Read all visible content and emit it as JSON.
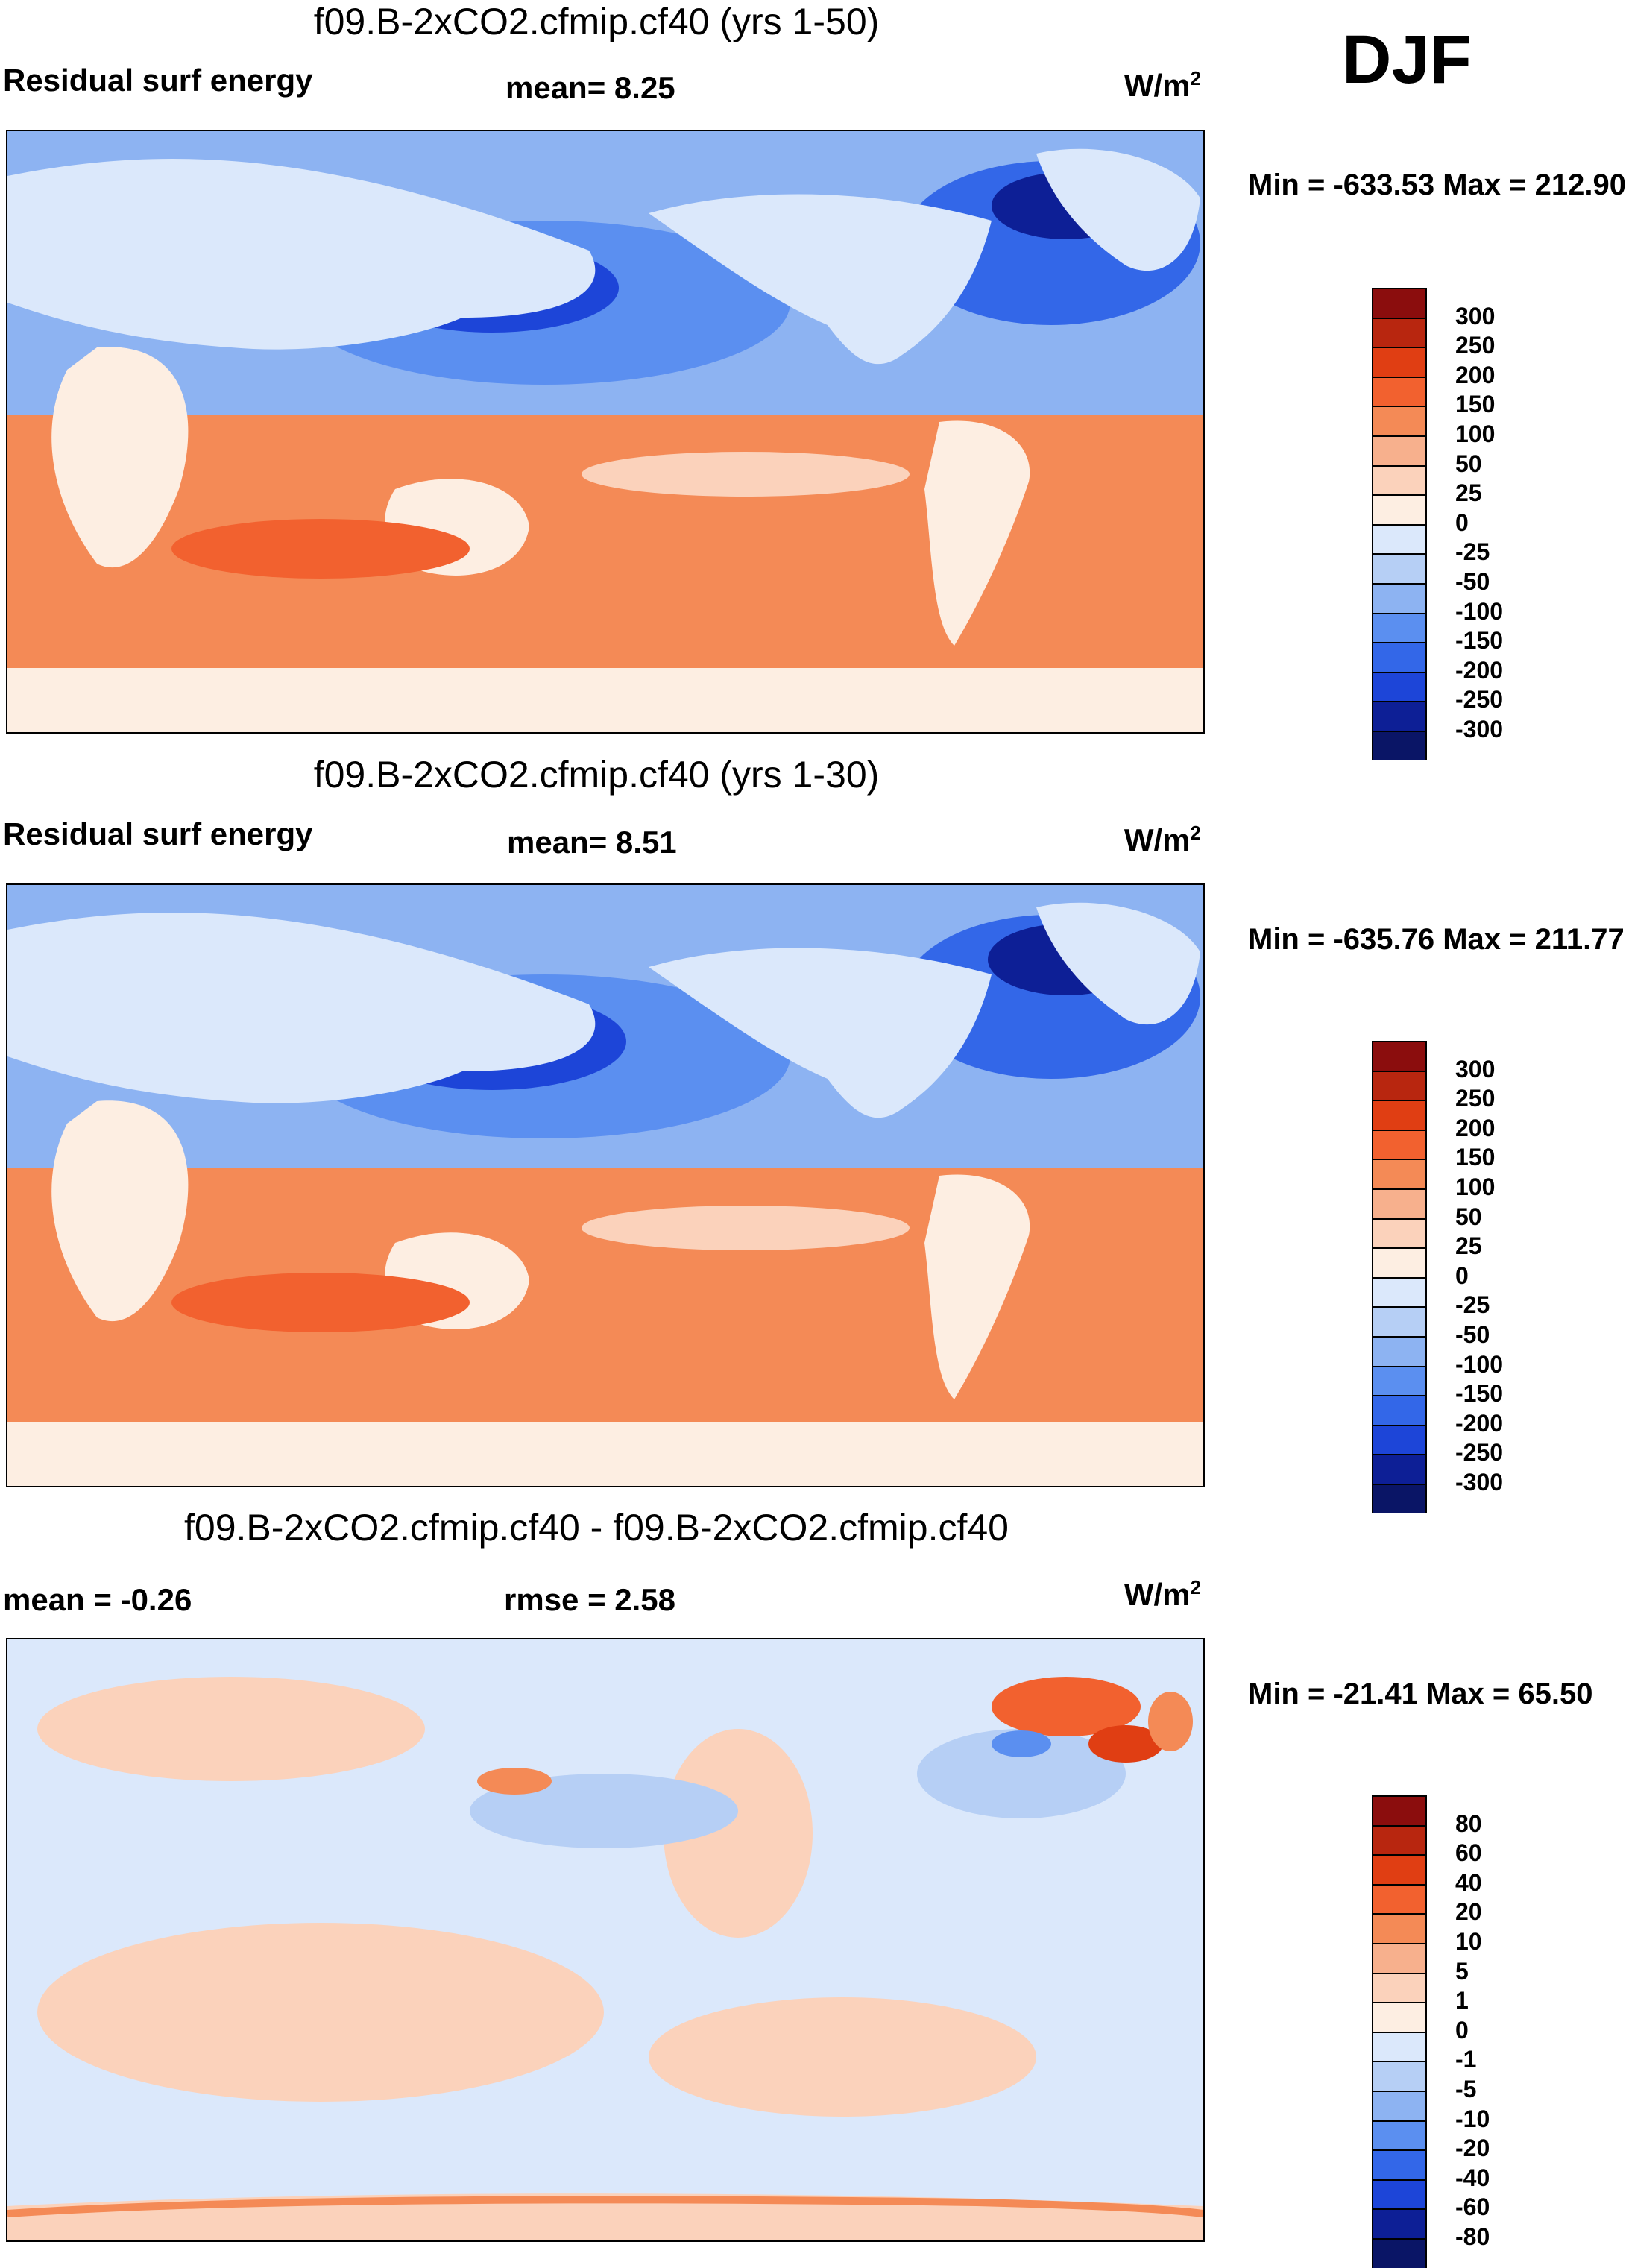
{
  "season": "DJF",
  "colors": {
    "ocean_pos": "#f5a37f",
    "ocean_pos_strong": "#f07a4a",
    "ocean_neg": "#5b8ff0",
    "ocean_neg_strong": "#1d45d8",
    "land": "#dbe8fb",
    "land_south": "#fde6d6",
    "diff_neutral": "#fbe4d6",
    "diff_cool": "#bcd0f5",
    "diff_hot": "#e8582e"
  },
  "panels": [
    {
      "title": "f09.B-2xCO2.cfmip.cf40 (yrs 1-50)",
      "left_label": "Residual surf energy",
      "mid_label": "mean=   8.25",
      "unit": "W/m",
      "unit_sup": "2",
      "minmax": "Min = -633.53 Max = 212.90",
      "colorbar": {
        "levels": [
          "300",
          "250",
          "200",
          "150",
          "100",
          "50",
          "25",
          "0",
          "-25",
          "-50",
          "-100",
          "-150",
          "-200",
          "-250",
          "-300"
        ],
        "colors": [
          "#8b0d0d",
          "#b8260f",
          "#e03e13",
          "#f2612f",
          "#f48a56",
          "#f7b08d",
          "#fbd2bb",
          "#fdeee2",
          "#dbe8fb",
          "#b6cff5",
          "#8db3f2",
          "#5b8ff0",
          "#3367e8",
          "#1d45d8",
          "#0d1f96",
          "#0a1566"
        ]
      }
    },
    {
      "title": "f09.B-2xCO2.cfmip.cf40 (yrs 1-30)",
      "left_label": "Residual surf energy",
      "mid_label": "mean=   8.51",
      "unit": "W/m",
      "unit_sup": "2",
      "minmax": "Min = -635.76 Max = 211.77",
      "colorbar": {
        "levels": [
          "300",
          "250",
          "200",
          "150",
          "100",
          "50",
          "25",
          "0",
          "-25",
          "-50",
          "-100",
          "-150",
          "-200",
          "-250",
          "-300"
        ],
        "colors": [
          "#8b0d0d",
          "#b8260f",
          "#e03e13",
          "#f2612f",
          "#f48a56",
          "#f7b08d",
          "#fbd2bb",
          "#fdeee2",
          "#dbe8fb",
          "#b6cff5",
          "#8db3f2",
          "#5b8ff0",
          "#3367e8",
          "#1d45d8",
          "#0d1f96",
          "#0a1566"
        ]
      }
    },
    {
      "title": "f09.B-2xCO2.cfmip.cf40 - f09.B-2xCO2.cfmip.cf40",
      "left_label": "mean =  -0.26",
      "mid_label": "rmse =   2.58",
      "unit": "W/m",
      "unit_sup": "2",
      "minmax": "Min = -21.41 Max =  65.50",
      "colorbar": {
        "levels": [
          "80",
          "60",
          "40",
          "20",
          "10",
          "5",
          "1",
          "0",
          "-1",
          "-5",
          "-10",
          "-20",
          "-40",
          "-60",
          "-80"
        ],
        "colors": [
          "#8b0d0d",
          "#b8260f",
          "#e03e13",
          "#f2612f",
          "#f48a56",
          "#f7b08d",
          "#fbd2bb",
          "#fdeee2",
          "#dbe8fb",
          "#b6cff5",
          "#8db3f2",
          "#5b8ff0",
          "#3367e8",
          "#1d45d8",
          "#0d1f96",
          "#0a1566"
        ]
      }
    }
  ]
}
